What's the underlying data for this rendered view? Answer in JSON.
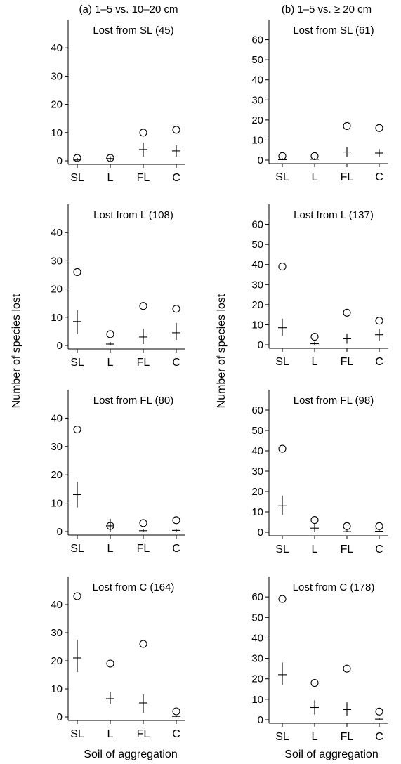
{
  "columns": [
    {
      "title": "(a) 1–5 vs. 10–20 cm"
    },
    {
      "title": "(b) 1–5 vs. ≥ 20 cm"
    }
  ],
  "y_axis_label": "Number of species lost",
  "x_axis_label": "Soil of aggregation",
  "chart_data": [
    {
      "type": "scatter",
      "column": "a",
      "title": "Lost from SL (45)",
      "categories": [
        "SL",
        "L",
        "FL",
        "C"
      ],
      "ylim": [
        0,
        50
      ],
      "yticks": [
        0,
        10,
        20,
        30,
        40
      ],
      "series": [
        {
          "name": "",
          "marker": "circle",
          "values": [
            1,
            1,
            10,
            11
          ]
        },
        {
          "name": "",
          "marker": "plus-range",
          "values": [
            0.3,
            0.8,
            4,
            3.5
          ],
          "ranges": [
            [
              0,
              1
            ],
            [
              0,
              1.6
            ],
            [
              1.5,
              6.5
            ],
            [
              1.5,
              5.5
            ]
          ]
        }
      ]
    },
    {
      "type": "scatter",
      "column": "b",
      "title": "Lost from SL (61)",
      "categories": [
        "SL",
        "L",
        "FL",
        "C"
      ],
      "ylim": [
        0,
        70
      ],
      "yticks": [
        0,
        10,
        20,
        30,
        40,
        50,
        60
      ],
      "series": [
        {
          "name": "",
          "marker": "circle",
          "values": [
            2,
            2,
            17,
            16
          ]
        },
        {
          "name": "",
          "marker": "plus-range",
          "values": [
            0.2,
            0.4,
            4,
            3.5
          ],
          "ranges": [
            [
              0,
              1
            ],
            [
              0,
              1
            ],
            [
              1.5,
              6.5
            ],
            [
              1.5,
              5.5
            ]
          ]
        }
      ]
    },
    {
      "type": "scatter",
      "column": "a",
      "title": "Lost from L (108)",
      "categories": [
        "SL",
        "L",
        "FL",
        "C"
      ],
      "ylim": [
        0,
        50
      ],
      "yticks": [
        0,
        10,
        20,
        30,
        40
      ],
      "series": [
        {
          "name": "",
          "marker": "circle",
          "values": [
            26,
            4,
            14,
            13
          ]
        },
        {
          "name": "",
          "marker": "plus-range",
          "values": [
            8.5,
            0.5,
            3,
            4.5
          ],
          "ranges": [
            [
              4,
              12.5
            ],
            [
              0,
              1.2
            ],
            [
              0.5,
              6
            ],
            [
              2,
              8
            ]
          ]
        }
      ]
    },
    {
      "type": "scatter",
      "column": "b",
      "title": "Lost from L (137)",
      "categories": [
        "SL",
        "L",
        "FL",
        "C"
      ],
      "ylim": [
        0,
        70
      ],
      "yticks": [
        0,
        10,
        20,
        30,
        40,
        50,
        60
      ],
      "series": [
        {
          "name": "",
          "marker": "circle",
          "values": [
            39,
            4,
            16,
            12
          ]
        },
        {
          "name": "",
          "marker": "plus-range",
          "values": [
            8.5,
            0.5,
            3,
            5
          ],
          "ranges": [
            [
              4.5,
              13
            ],
            [
              0,
              1.5
            ],
            [
              0.5,
              5.5
            ],
            [
              2,
              8
            ]
          ]
        }
      ]
    },
    {
      "type": "scatter",
      "column": "a",
      "title": "Lost from FL (80)",
      "categories": [
        "SL",
        "L",
        "FL",
        "C"
      ],
      "ylim": [
        0,
        50
      ],
      "yticks": [
        0,
        10,
        20,
        30,
        40
      ],
      "series": [
        {
          "name": "",
          "marker": "circle",
          "values": [
            36,
            2,
            3,
            4
          ]
        },
        {
          "name": "",
          "marker": "plus-range",
          "values": [
            13,
            2,
            0.3,
            0.4
          ],
          "ranges": [
            [
              8.5,
              17.5
            ],
            [
              0,
              4.5
            ],
            [
              0,
              1
            ],
            [
              0,
              1
            ]
          ]
        }
      ]
    },
    {
      "type": "scatter",
      "column": "b",
      "title": "Lost from FL (98)",
      "categories": [
        "SL",
        "L",
        "FL",
        "C"
      ],
      "ylim": [
        0,
        70
      ],
      "yticks": [
        0,
        10,
        20,
        30,
        40,
        50,
        60
      ],
      "series": [
        {
          "name": "",
          "marker": "circle",
          "values": [
            41,
            6,
            3,
            3
          ]
        },
        {
          "name": "",
          "marker": "plus-range",
          "values": [
            13,
            2,
            0.3,
            0.5
          ],
          "ranges": [
            [
              8.5,
              18
            ],
            [
              0,
              4.5
            ],
            [
              0,
              1
            ],
            [
              0,
              1
            ]
          ]
        }
      ]
    },
    {
      "type": "scatter",
      "column": "a",
      "title": "Lost from C (164)",
      "categories": [
        "SL",
        "L",
        "FL",
        "C"
      ],
      "ylim": [
        0,
        50
      ],
      "yticks": [
        0,
        10,
        20,
        30,
        40
      ],
      "series": [
        {
          "name": "",
          "marker": "circle",
          "values": [
            43,
            19,
            26,
            2
          ]
        },
        {
          "name": "",
          "marker": "plus-range",
          "values": [
            21,
            6.5,
            5,
            0.2
          ],
          "ranges": [
            [
              16,
              27.5
            ],
            [
              4.5,
              9
            ],
            [
              1.5,
              8
            ],
            [
              0,
              0.5
            ]
          ]
        }
      ]
    },
    {
      "type": "scatter",
      "column": "b",
      "title": "Lost from C (178)",
      "categories": [
        "SL",
        "L",
        "FL",
        "C"
      ],
      "ylim": [
        0,
        70
      ],
      "yticks": [
        0,
        10,
        20,
        30,
        40,
        50,
        60
      ],
      "series": [
        {
          "name": "",
          "marker": "circle",
          "values": [
            59,
            18,
            25,
            4
          ]
        },
        {
          "name": "",
          "marker": "plus-range",
          "values": [
            22,
            6,
            5,
            0.3
          ],
          "ranges": [
            [
              17,
              28
            ],
            [
              2.5,
              9.5
            ],
            [
              2,
              8.5
            ],
            [
              0,
              1
            ]
          ]
        }
      ]
    }
  ]
}
